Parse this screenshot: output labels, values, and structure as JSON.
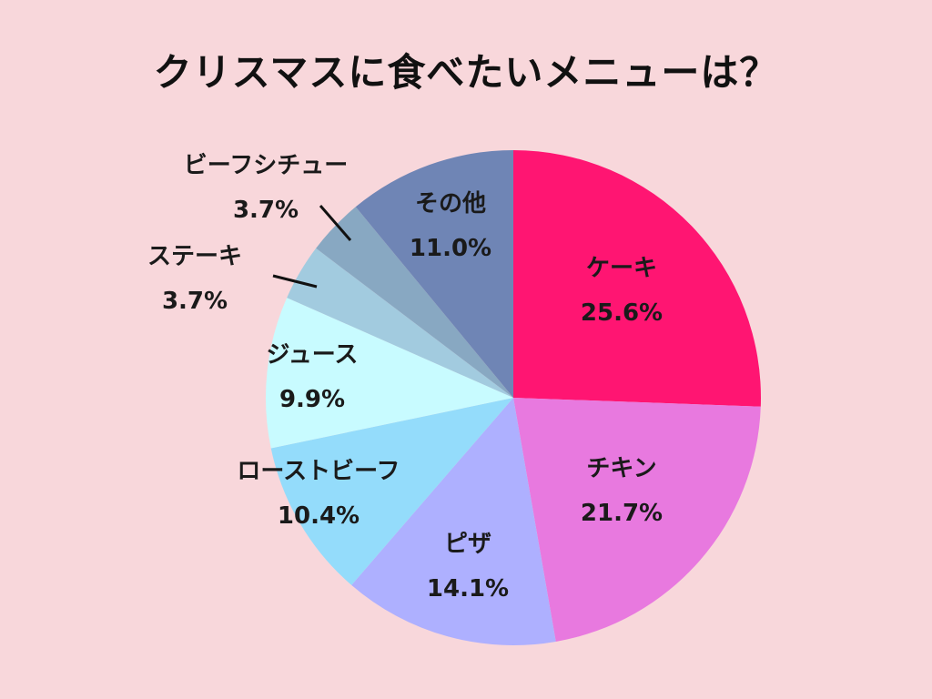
{
  "chart_data": {
    "type": "pie",
    "title": "クリスマスに食べたいメニューは？",
    "slices": [
      {
        "name": "ケーキ",
        "value": 25.6,
        "label": "25.6%",
        "color": "#ff1572"
      },
      {
        "name": "チキン",
        "value": 21.7,
        "label": "21.7%",
        "color": "#e879df"
      },
      {
        "name": "ピザ",
        "value": 14.1,
        "label": "14.1%",
        "color": "#aeb0ff"
      },
      {
        "name": "ローストビーフ",
        "value": 10.4,
        "label": "10.4%",
        "color": "#94dcfb"
      },
      {
        "name": "ジュース",
        "value": 9.9,
        "label": "9.9%",
        "color": "#c8fbff"
      },
      {
        "name": "ステーキ",
        "value": 3.7,
        "label": "3.7%",
        "color": "#a2cbdf"
      },
      {
        "name": "ビーフシチュー",
        "value": 3.7,
        "label": "3.7%",
        "color": "#88a8c2"
      },
      {
        "name": "その他",
        "value": 11.0,
        "label": "11.0%",
        "color": "#6f85b5"
      }
    ],
    "start": "12 o'clock",
    "direction": "clockwise",
    "legend": "none"
  }
}
